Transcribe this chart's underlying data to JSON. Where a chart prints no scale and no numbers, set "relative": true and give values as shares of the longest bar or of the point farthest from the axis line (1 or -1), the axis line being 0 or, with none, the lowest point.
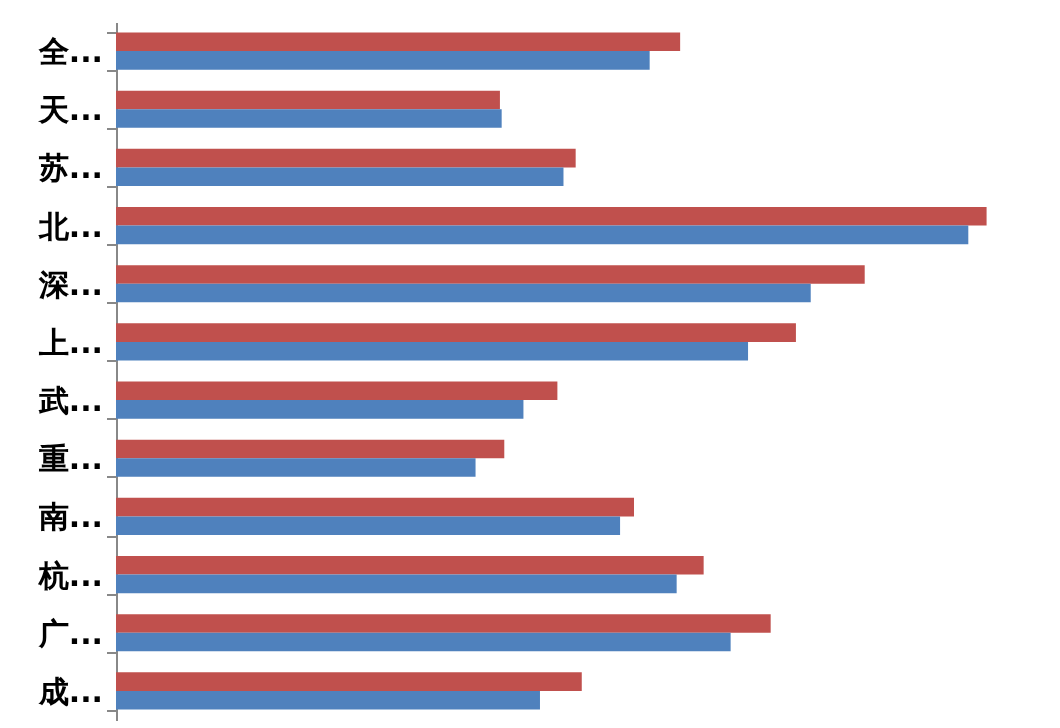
{
  "chart_data": {
    "type": "bar",
    "orientation": "horizontal",
    "relative": true,
    "legend": false,
    "categories": [
      "全...",
      "天...",
      "苏...",
      "北...",
      "深...",
      "上...",
      "武...",
      "重...",
      "南...",
      "杭...",
      "广...",
      "成..."
    ],
    "series": [
      {
        "color": "#c0504d",
        "values": [
          0.648,
          0.441,
          0.528,
          1,
          0.86,
          0.781,
          0.507,
          0.446,
          0.595,
          0.675,
          0.752,
          0.535
        ]
      },
      {
        "color": "#4f81bd",
        "values": [
          0.613,
          0.443,
          0.514,
          0.979,
          0.798,
          0.726,
          0.468,
          0.413,
          0.579,
          0.644,
          0.706,
          0.487
        ]
      }
    ]
  }
}
